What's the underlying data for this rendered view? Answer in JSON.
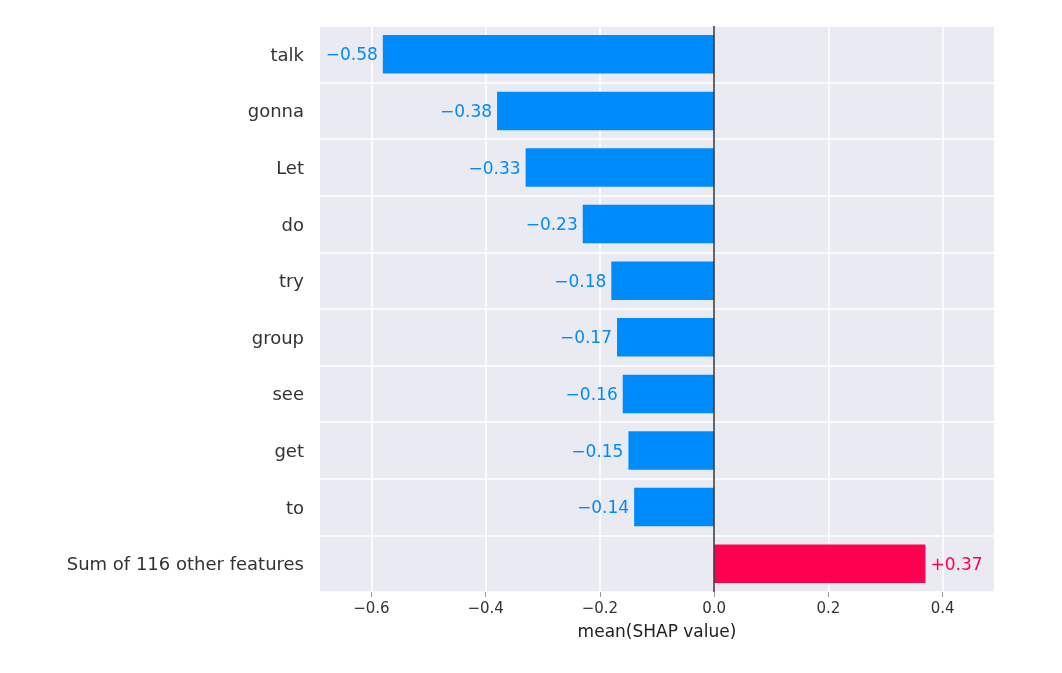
{
  "chart_data": {
    "type": "bar",
    "orientation": "horizontal",
    "xlabel": "mean(SHAP value)",
    "categories": [
      "talk",
      "gonna",
      "Let",
      "do",
      "try",
      "group",
      "see",
      "get",
      "to",
      "Sum of 116 other features"
    ],
    "values": [
      -0.58,
      -0.38,
      -0.33,
      -0.23,
      -0.18,
      -0.17,
      -0.16,
      -0.15,
      -0.14,
      0.37
    ],
    "colors": [
      "#008bfb",
      "#008bfb",
      "#008bfb",
      "#008bfb",
      "#008bfb",
      "#008bfb",
      "#008bfb",
      "#008bfb",
      "#008bfb",
      "#ff0051"
    ],
    "value_labels": [
      "−0.58",
      "−0.38",
      "−0.33",
      "−0.23",
      "−0.18",
      "−0.17",
      "−0.16",
      "−0.15",
      "−0.14",
      "+0.37"
    ],
    "xlim": [
      -0.69,
      0.49
    ],
    "xticks": [
      {
        "value": -0.6,
        "label": "−0.6"
      },
      {
        "value": -0.4,
        "label": "−0.4"
      },
      {
        "value": -0.2,
        "label": "−0.2"
      },
      {
        "value": 0,
        "label": "0.0"
      },
      {
        "value": 0.2,
        "label": "0.2"
      },
      {
        "value": 0.4,
        "label": "0.4"
      }
    ],
    "ref_lines": [
      {
        "axis": "x",
        "value": 0,
        "color": "#333333"
      }
    ],
    "grid": true
  }
}
